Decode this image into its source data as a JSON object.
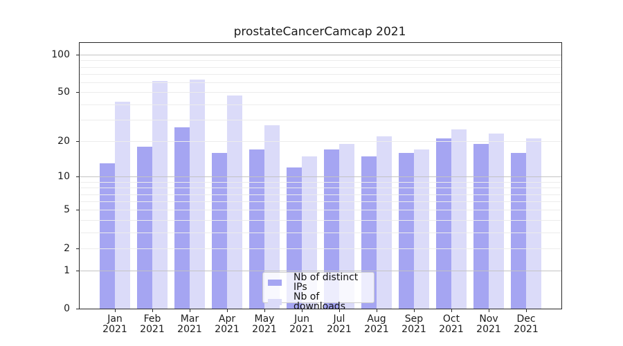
{
  "chart": {
    "title": "prostateCancerCamcap 2021"
  },
  "chart_data": {
    "type": "bar",
    "title": "prostateCancerCamcap 2021",
    "categories": [
      "Jan 2021",
      "Feb 2021",
      "Mar 2021",
      "Apr 2021",
      "May 2021",
      "Jun 2021",
      "Jul 2021",
      "Aug 2021",
      "Sep 2021",
      "Oct 2021",
      "Nov 2021",
      "Dec 2021"
    ],
    "series": [
      {
        "name": "Nb of distinct IPs",
        "color": "#a5a5f2",
        "values": [
          13,
          18,
          26,
          16,
          17,
          12,
          17,
          15,
          16,
          21,
          19,
          16
        ]
      },
      {
        "name": "Nb of downloads",
        "color": "#dbdbf9",
        "values": [
          42,
          62,
          63,
          47,
          27,
          15,
          19,
          22,
          17,
          25,
          23,
          21
        ]
      }
    ],
    "xlabel": "",
    "ylabel": "",
    "yscale": "log1p",
    "ylim": [
      0,
      124
    ],
    "yticks": [
      0,
      1,
      2,
      5,
      10,
      20,
      50,
      100
    ],
    "grid": {
      "minor": [
        2,
        3,
        4,
        5,
        6,
        7,
        8,
        9,
        20,
        30,
        40,
        50,
        60,
        70,
        80,
        90
      ],
      "major": [
        1,
        10,
        100
      ]
    },
    "legend_position": "lower center",
    "axis_color": "#262626",
    "minor_grid_color": "#ececec",
    "major_grid_color": "#c3c3c3"
  }
}
